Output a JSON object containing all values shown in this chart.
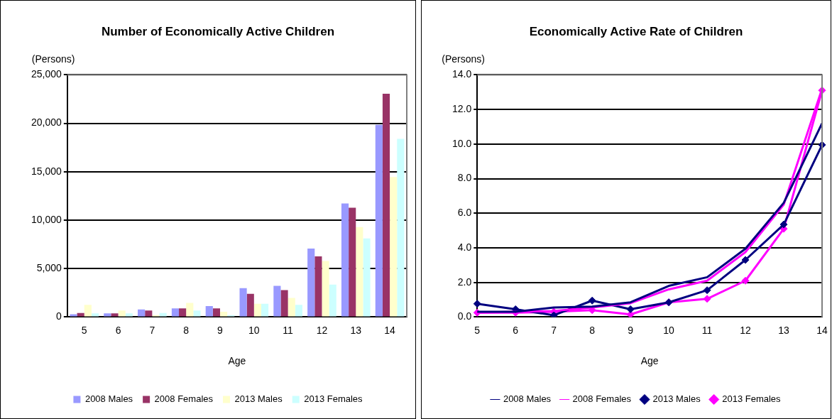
{
  "chart_data": [
    {
      "type": "bar",
      "title": "Number of Economically Active Children",
      "ylabel": "(Persons)",
      "xlabel": "Age",
      "categories": [
        "5",
        "6",
        "7",
        "8",
        "9",
        "10",
        "11",
        "12",
        "13",
        "14"
      ],
      "series": [
        {
          "name": "2008 Males",
          "color": "#9999ff",
          "values": [
            290,
            370,
            780,
            890,
            1120,
            2980,
            3210,
            7070,
            11720,
            19840
          ]
        },
        {
          "name": "2008 Females",
          "color": "#993366",
          "values": [
            420,
            370,
            680,
            890,
            890,
            2400,
            2770,
            6260,
            11280,
            23050
          ]
        },
        {
          "name": "2013 Males",
          "color": "#ffffcc",
          "values": [
            1250,
            680,
            200,
            1460,
            550,
            1360,
            1980,
            5790,
            9290,
            14460
          ]
        },
        {
          "name": "2013 Females",
          "color": "#ccffff",
          "values": [
            370,
            370,
            420,
            680,
            200,
            1360,
            1250,
            3340,
            8120,
            18400
          ]
        }
      ],
      "ylim": [
        0,
        25000
      ],
      "yticks": [
        {
          "value": 0,
          "label": "0"
        },
        {
          "value": 5000,
          "label": "5,000"
        },
        {
          "value": 10000,
          "label": "10,000"
        },
        {
          "value": 15000,
          "label": "15,000"
        },
        {
          "value": 20000,
          "label": "20,000"
        },
        {
          "value": 25000,
          "label": "25,000"
        }
      ],
      "grid": "y",
      "legend": "bottom"
    },
    {
      "type": "line",
      "title": "Economically Active Rate of Children",
      "ylabel": "(Persons)",
      "xlabel": "Age",
      "categories": [
        "5",
        "6",
        "7",
        "8",
        "9",
        "10",
        "11",
        "12",
        "13",
        "14"
      ],
      "series": [
        {
          "name": "2008 Males",
          "color": "#000080",
          "marker": "none",
          "values": [
            0.3,
            0.3,
            0.55,
            0.6,
            0.85,
            1.8,
            2.3,
            3.95,
            6.6,
            11.2
          ]
        },
        {
          "name": "2008 Females",
          "color": "#ff00ff",
          "marker": "none",
          "values": [
            0.25,
            0.3,
            0.35,
            0.55,
            0.8,
            1.6,
            2.1,
            3.75,
            6.5,
            13.2
          ]
        },
        {
          "name": "2013 Males",
          "color": "#000080",
          "marker": "diamond",
          "values": [
            0.77,
            0.45,
            0.1,
            0.95,
            0.45,
            0.85,
            1.55,
            3.3,
            5.35,
            9.95
          ]
        },
        {
          "name": "2013 Females",
          "color": "#ff00ff",
          "marker": "diamond",
          "values": [
            0.25,
            0.25,
            0.3,
            0.4,
            0.15,
            0.85,
            1.05,
            2.1,
            5.1,
            13.1
          ]
        }
      ],
      "ylim": [
        0,
        14
      ],
      "yticks": [
        {
          "value": 0,
          "label": "0.0"
        },
        {
          "value": 2,
          "label": "2.0"
        },
        {
          "value": 4,
          "label": "4.0"
        },
        {
          "value": 6,
          "label": "6.0"
        },
        {
          "value": 8,
          "label": "8.0"
        },
        {
          "value": 10,
          "label": "10.0"
        },
        {
          "value": 12,
          "label": "12.0"
        },
        {
          "value": 14,
          "label": "14.0"
        }
      ],
      "grid": "y",
      "legend": "bottom"
    }
  ]
}
